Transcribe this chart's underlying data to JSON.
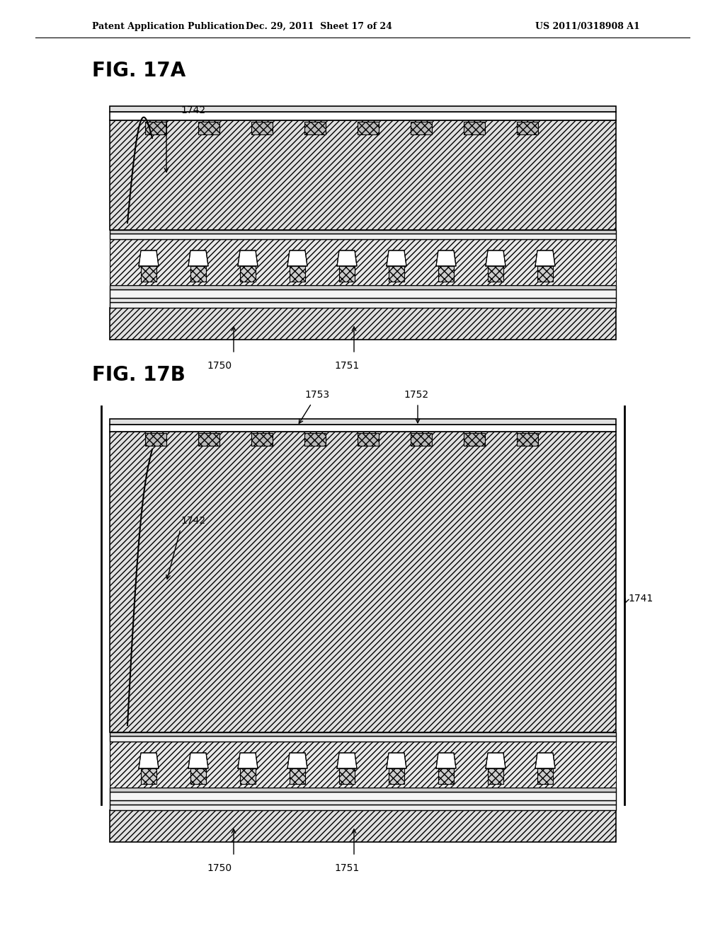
{
  "bg_color": "#ffffff",
  "header_left": "Patent Application Publication",
  "header_mid": "Dec. 29, 2011  Sheet 17 of 24",
  "header_right": "US 2011/0318908 A1",
  "fig17a_label": "FIG. 17A",
  "fig17b_label": "FIG. 17B",
  "label_1742_a": "1742",
  "label_1750_a": "1750",
  "label_1751_a": "1751",
  "label_1742_b": "1742",
  "label_1753_b": "1753",
  "label_1752_b": "1752",
  "label_1741_b": "1741",
  "label_1750_b": "1750",
  "label_1751_b": "1751",
  "hatch_color": "#000000",
  "line_color": "#000000"
}
